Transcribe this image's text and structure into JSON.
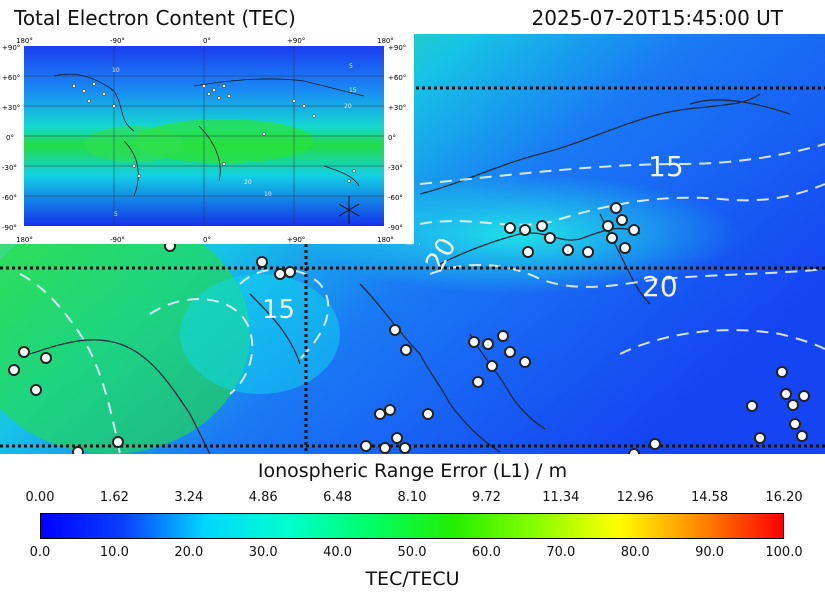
{
  "header": {
    "title": "Total Electron Content (TEC)",
    "timestamp": "2025-07-20T15:45:00 UT"
  },
  "inset": {
    "top_labels": [
      "180°",
      "-90°",
      "0°",
      "+90°",
      "180°"
    ],
    "bottom_labels": [
      "180°",
      "-90°",
      "0°",
      "+90°",
      "180°"
    ],
    "right_labels": [
      "+90°",
      "+60°",
      "+30°",
      "0°",
      "-30°",
      "-60°",
      "-90°"
    ],
    "left_labels": [
      "+90°",
      "+60°",
      "+30°",
      "0°",
      "-30°",
      "-60°",
      "-90°"
    ],
    "contour_labels": [
      "10",
      "5",
      "15",
      "20",
      "20",
      "10",
      "5"
    ]
  },
  "main_map": {
    "contour_labels": [
      "15",
      "20",
      "20",
      "15"
    ]
  },
  "colorbar": {
    "range_label": "Ionospheric Range Error (L1) / m",
    "range_ticks": [
      "0.00",
      "1.62",
      "3.24",
      "4.86",
      "6.48",
      "8.10",
      "9.72",
      "11.34",
      "12.96",
      "14.58",
      "16.20"
    ],
    "tec_ticks": [
      "0.0",
      "10.0",
      "20.0",
      "30.0",
      "40.0",
      "50.0",
      "60.0",
      "70.0",
      "80.0",
      "90.0",
      "100.0"
    ],
    "tec_label": "TEC/TECU",
    "colors": [
      "#0000ff",
      "#0a3fff",
      "#00d8ff",
      "#00ffcc",
      "#00ff66",
      "#22ee00",
      "#88ff00",
      "#ffff00",
      "#ff8800",
      "#ff0000"
    ]
  }
}
